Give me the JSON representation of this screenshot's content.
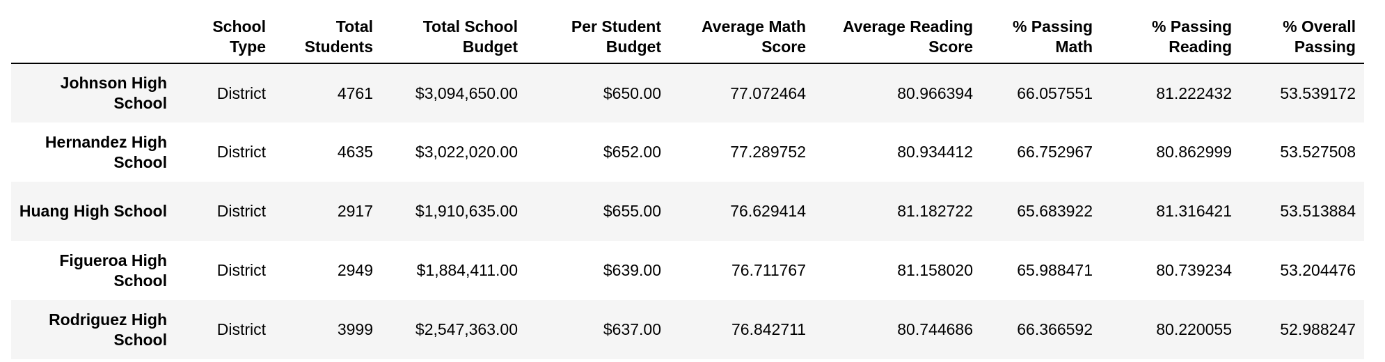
{
  "table": {
    "index_header": "",
    "columns": [
      "School Type",
      "Total Students",
      "Total School Budget",
      "Per Student Budget",
      "Average Math Score",
      "Average Reading Score",
      "% Passing Math",
      "% Passing Reading",
      "% Overall Passing"
    ],
    "rows": [
      {
        "school": "Johnson High School",
        "cells": [
          "District",
          "4761",
          "$3,094,650.00",
          "$650.00",
          "77.072464",
          "80.966394",
          "66.057551",
          "81.222432",
          "53.539172"
        ]
      },
      {
        "school": "Hernandez High School",
        "cells": [
          "District",
          "4635",
          "$3,022,020.00",
          "$652.00",
          "77.289752",
          "80.934412",
          "66.752967",
          "80.862999",
          "53.527508"
        ]
      },
      {
        "school": "Huang High School",
        "cells": [
          "District",
          "2917",
          "$1,910,635.00",
          "$655.00",
          "76.629414",
          "81.182722",
          "65.683922",
          "81.316421",
          "53.513884"
        ]
      },
      {
        "school": "Figueroa High School",
        "cells": [
          "District",
          "2949",
          "$1,884,411.00",
          "$639.00",
          "76.711767",
          "81.158020",
          "65.988471",
          "80.739234",
          "53.204476"
        ]
      },
      {
        "school": "Rodriguez High School",
        "cells": [
          "District",
          "3999",
          "$2,547,363.00",
          "$637.00",
          "76.842711",
          "80.744686",
          "66.366592",
          "80.220055",
          "52.988247"
        ]
      }
    ]
  }
}
